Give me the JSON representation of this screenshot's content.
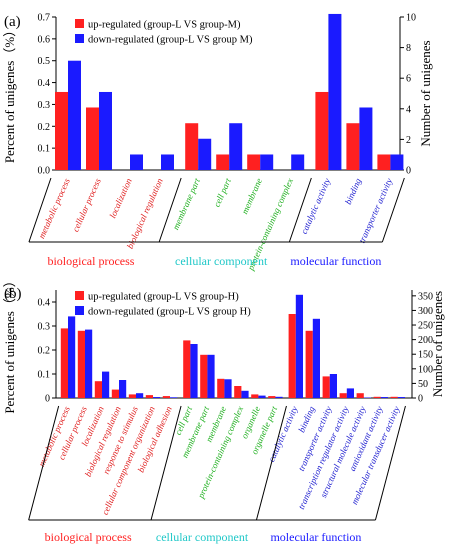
{
  "colors": {
    "up": "#ff2020",
    "down": "#1a1aff",
    "axis": "#000000"
  },
  "chart_data": [
    {
      "panel_label": "(a)",
      "type": "bar",
      "ylabel": "Percent of unigenes（%）",
      "y2label": "Number of unigenes",
      "ylim": [
        0,
        0.7
      ],
      "y2lim": [
        0,
        10
      ],
      "yticks": [
        "0.0",
        "0.1",
        "0.2",
        "0.3",
        "0.4",
        "0.5",
        "0.6",
        "0.7"
      ],
      "y2ticks": [
        "0",
        "2",
        "4",
        "6",
        "8",
        "10"
      ],
      "categories": [
        "metabolic process",
        "cellular process",
        "localization",
        "biological regulation",
        "membrane part",
        "cell part",
        "membrane",
        "protein-containing complex",
        "catalytic activity",
        "binding",
        "transporter activity"
      ],
      "category_group": [
        0,
        0,
        0,
        0,
        1,
        1,
        1,
        1,
        2,
        2,
        2
      ],
      "groups": [
        "biological process",
        "cellular component",
        "molecular function"
      ],
      "series": [
        {
          "name": "up-regulated (group-L VS group-M)",
          "values": [
            0.357,
            0.286,
            0,
            0,
            0.214,
            0.071,
            0.071,
            0,
            0.357,
            0.214,
            0.071
          ]
        },
        {
          "name": "down-regulated (group-L VS group M)",
          "values": [
            0.5,
            0.357,
            0.071,
            0.071,
            0.143,
            0.214,
            0.071,
            0.071,
            0.714,
            0.286,
            0.071
          ]
        }
      ],
      "legend_position": "top-left"
    },
    {
      "panel_label": "(b)",
      "type": "bar",
      "ylabel": "Percent of unigenes（%）",
      "y2label": "Number of unigenes",
      "ylim": [
        0,
        0.45
      ],
      "y2lim": [
        0,
        370
      ],
      "yticks": [
        "0",
        "0.1",
        "0.2",
        "0.3",
        "0.4"
      ],
      "y2ticks": [
        "0",
        "50",
        "100",
        "150",
        "200",
        "250",
        "300",
        "350"
      ],
      "categories": [
        "metabolic process",
        "cellular process",
        "localization",
        "biological regulation",
        "response to stimulus",
        "cellular component organization",
        "biological adhesion",
        "cell part",
        "membrane part",
        "membrane",
        "protein-containing complex",
        "organelle",
        "organelle part",
        "catalytic activity",
        "binding",
        "transporter activity",
        "transcription regulator activity",
        "structural molecule activity",
        "antioxidant activity",
        "molecular transducer activity"
      ],
      "category_group": [
        0,
        0,
        0,
        0,
        0,
        0,
        0,
        1,
        1,
        1,
        1,
        1,
        1,
        2,
        2,
        2,
        2,
        2,
        2,
        2
      ],
      "groups": [
        "biological process",
        "cellular component",
        "molecular function"
      ],
      "series": [
        {
          "name": "up-regulated (group-L VS group-H)",
          "values": [
            0.29,
            0.28,
            0.07,
            0.035,
            0.015,
            0.012,
            0.008,
            0.24,
            0.18,
            0.08,
            0.05,
            0.015,
            0.008,
            0.35,
            0.28,
            0.09,
            0.02,
            0.02,
            0.005,
            0.005
          ]
        },
        {
          "name": "down-regulated (group-L VS group H)",
          "values": [
            0.34,
            0.285,
            0.11,
            0.075,
            0.02,
            0.004,
            0.003,
            0.225,
            0.18,
            0.078,
            0.03,
            0.01,
            0.005,
            0.43,
            0.33,
            0.1,
            0.04,
            0.002,
            0.004,
            0.004
          ]
        }
      ],
      "legend_position": "top-left"
    }
  ]
}
